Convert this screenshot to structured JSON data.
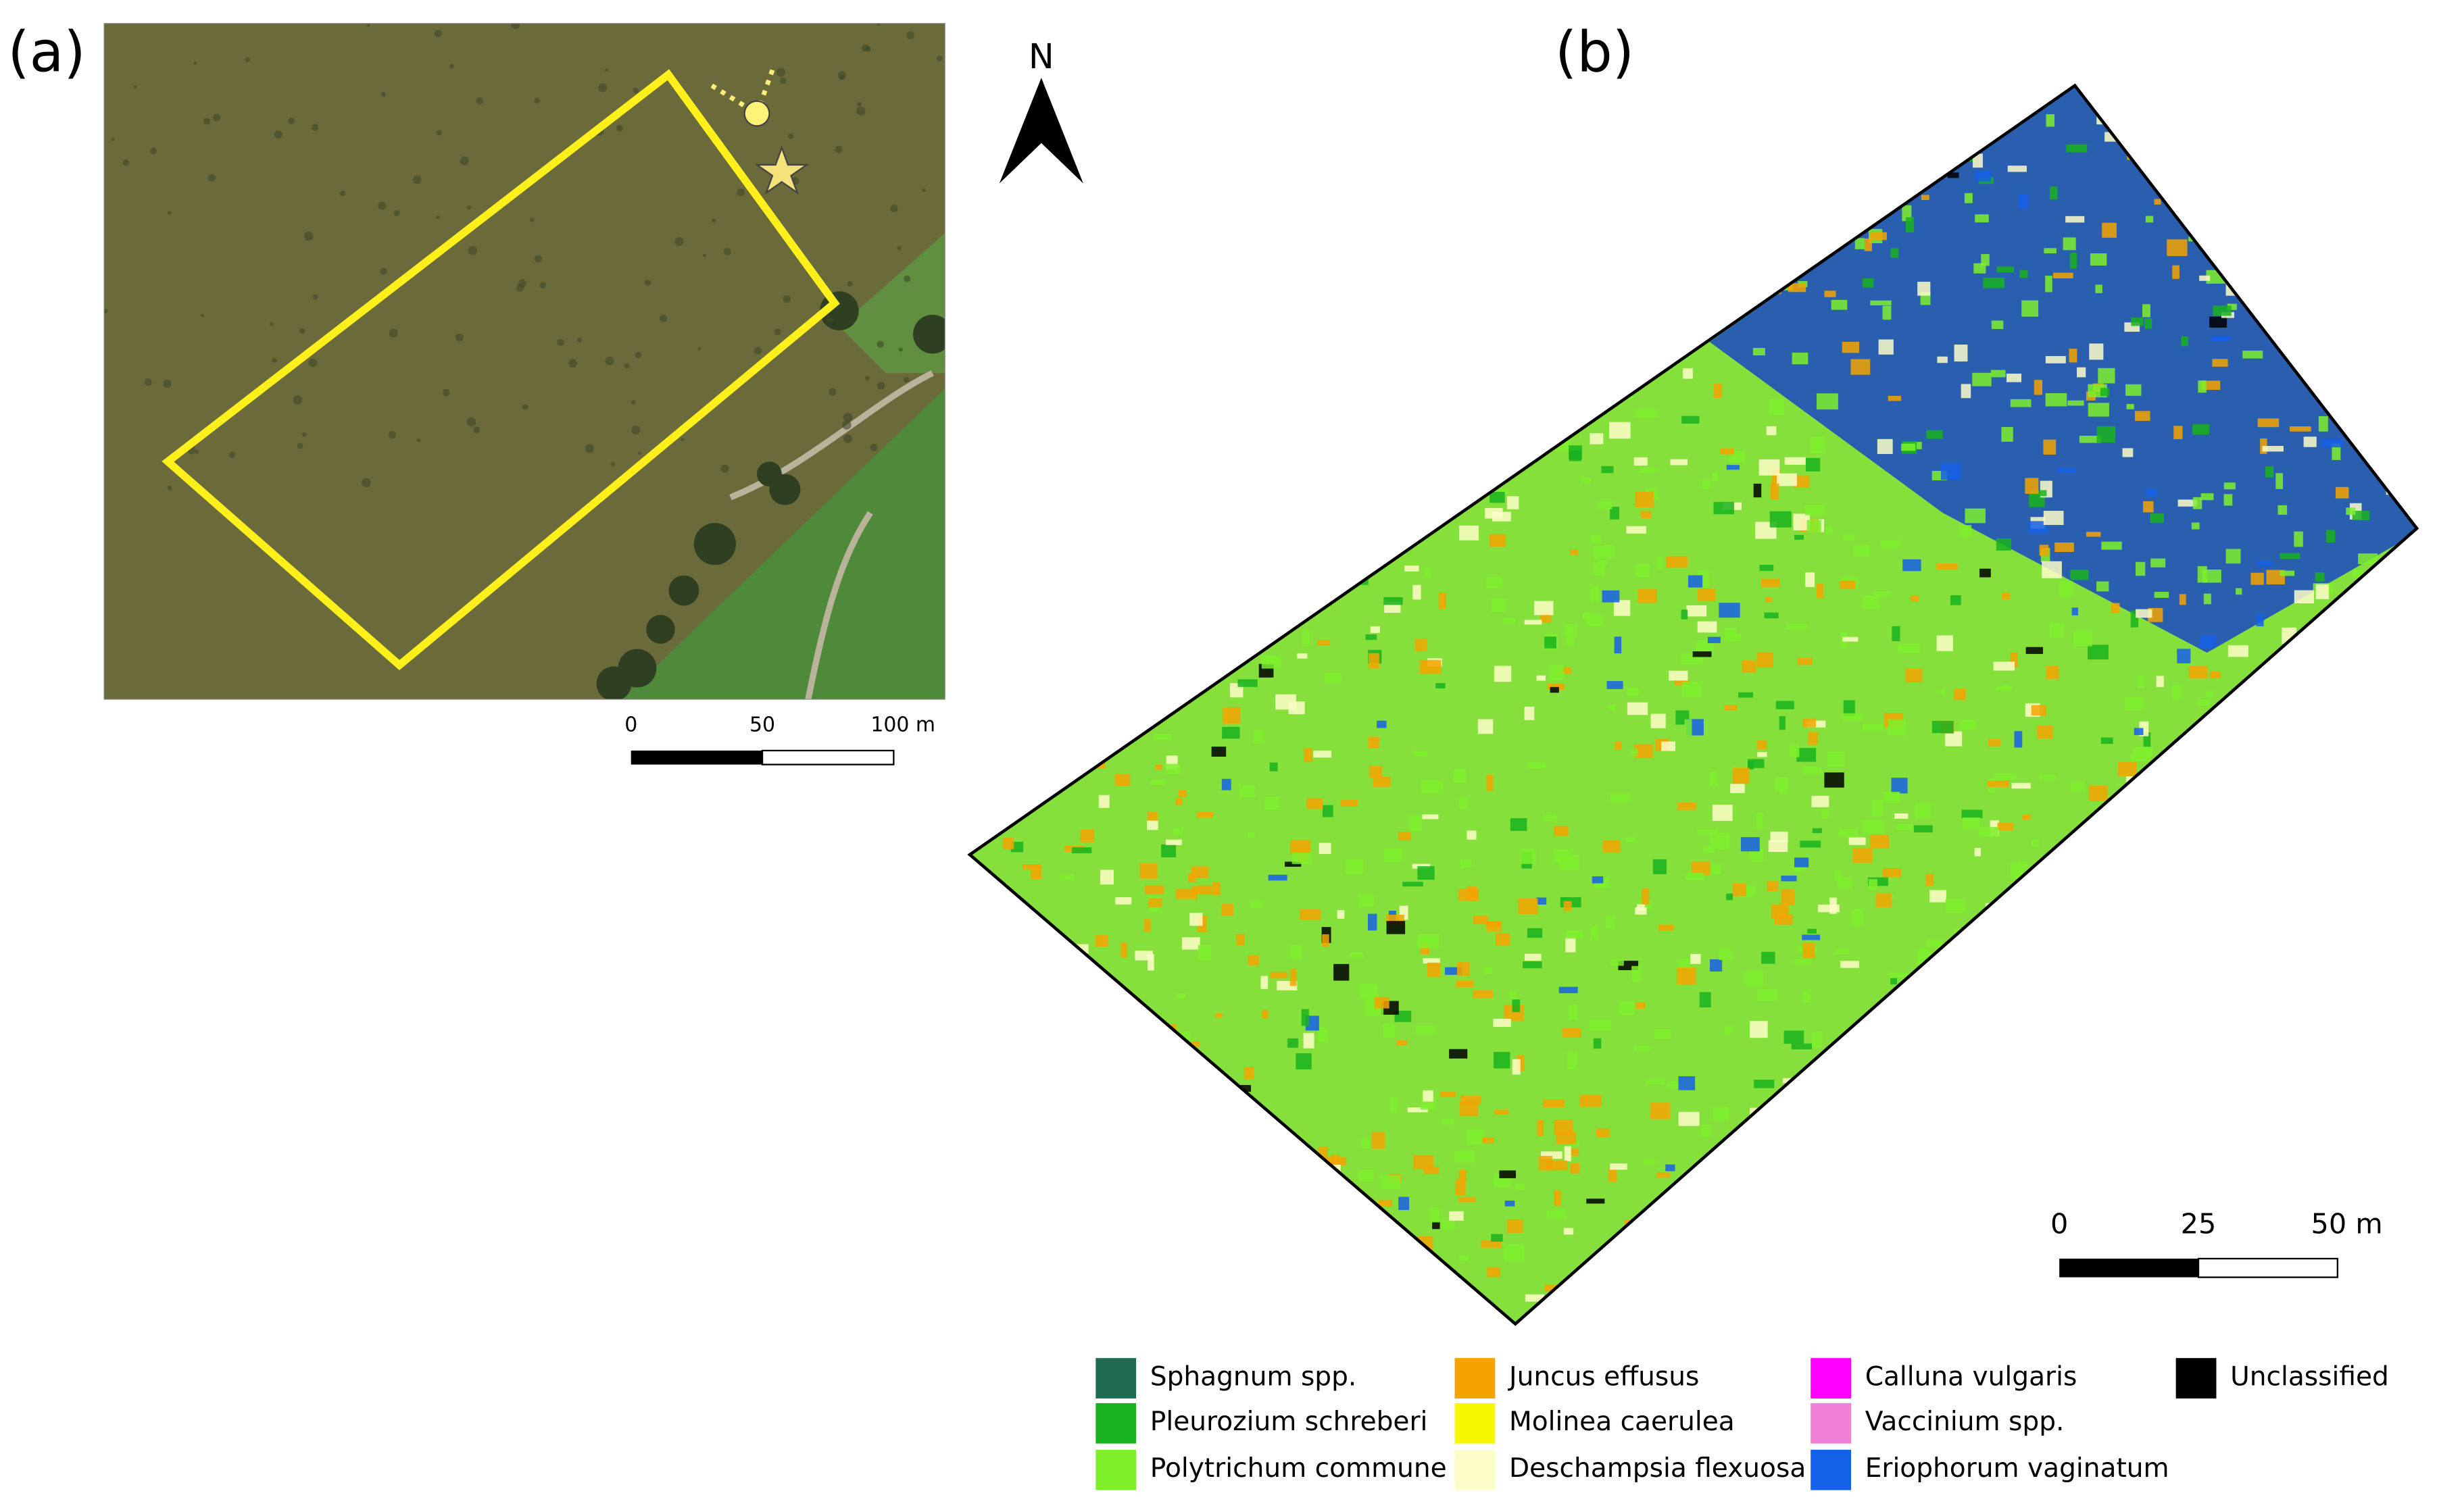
{
  "panels": [
    {
      "label": "(a)",
      "scale_bar": {
        "ticks": [
          "0",
          "50",
          "100 m"
        ]
      }
    },
    {
      "label": "(b)",
      "scale_bar": {
        "ticks": [
          "0",
          "25",
          "50 m"
        ]
      }
    }
  ],
  "north_label": "N",
  "legend": [
    {
      "label": "Sphagnum spp.",
      "color": "#1f6b4f"
    },
    {
      "label": "Pleurozium schreberi",
      "color": "#19b31f"
    },
    {
      "label": "Polytrichum commune",
      "color": "#7ef02b"
    },
    {
      "label": "Juncus effusus",
      "color": "#f5a300"
    },
    {
      "label": "Molinea caerulea",
      "color": "#f7f700"
    },
    {
      "label": "Deschampsia flexuosa",
      "color": "#fdfdc8"
    },
    {
      "label": "Calluna vulgaris",
      "color": "#ff00ff"
    },
    {
      "label": "Vaccinium spp.",
      "color": "#f07fd6"
    },
    {
      "label": "Eriophorum vaginatum",
      "color": "#1560e8"
    },
    {
      "label": "Unclassified",
      "color": "#000000"
    }
  ]
}
